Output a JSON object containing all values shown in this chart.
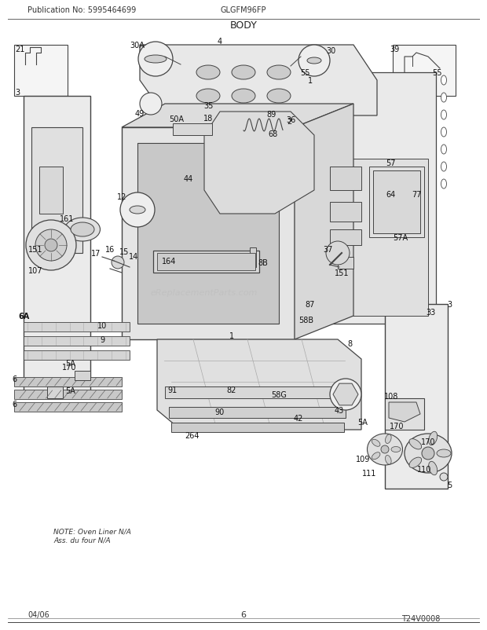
{
  "title": "BODY",
  "header_left": "Publication No: 5995464699",
  "header_right": "GLGFM96FP",
  "footer_left": "04/06",
  "footer_center": "6",
  "footer_right": "T24V0008",
  "bg_color": "#ffffff",
  "line_color": "#444444",
  "light_gray": "#cccccc",
  "mid_gray": "#aaaaaa",
  "dark_gray": "#666666",
  "watermark": "eReplacementParts.com",
  "note_text": "NOTE: Oven Liner N/A\nAss. du four N/A"
}
